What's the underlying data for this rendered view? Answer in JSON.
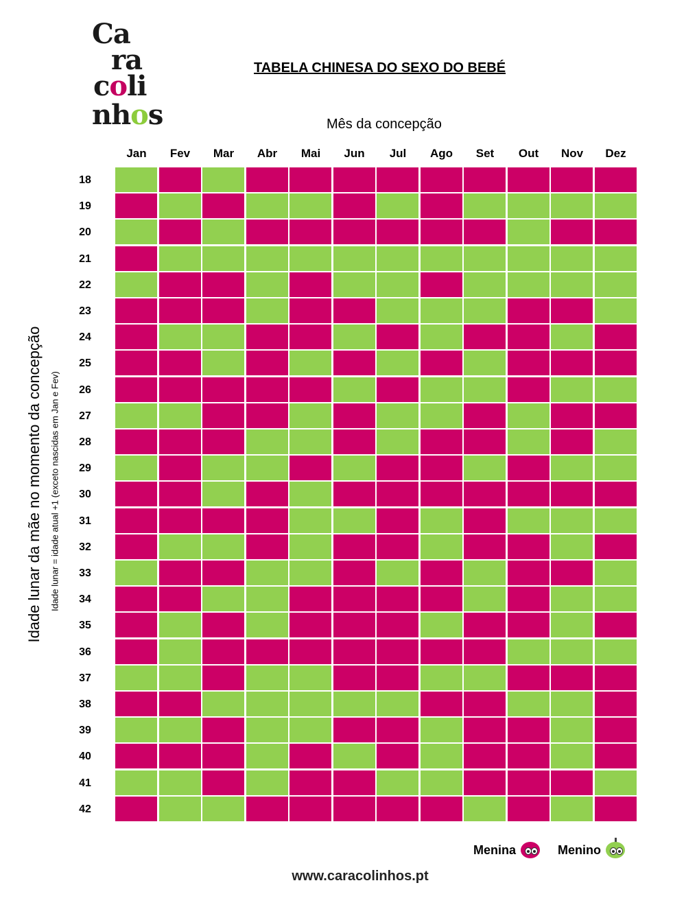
{
  "logo": {
    "line1": "Ca",
    "line2": "ra",
    "line3a": "c",
    "line3b": "o",
    "line3c": "li",
    "line4a": "nh",
    "line4b": "o",
    "line4c": "s"
  },
  "title": "TABELA CHINESA DO SEXO DO BEBÉ",
  "subtitle": "Mês da concepção",
  "axis_label": "Idade lunar da mãe no momento da concepção",
  "axis_note": "Idade lunar = idade atual +1 (exceto nascidas em Jan e Fev)",
  "months": [
    "Jan",
    "Fev",
    "Mar",
    "Abr",
    "Mai",
    "Jun",
    "Jul",
    "Ago",
    "Set",
    "Out",
    "Nov",
    "Dez"
  ],
  "ages": [
    "18",
    "19",
    "20",
    "21",
    "22",
    "23",
    "24",
    "25",
    "26",
    "27",
    "28",
    "29",
    "30",
    "31",
    "32",
    "33",
    "34",
    "35",
    "36",
    "37",
    "38",
    "39",
    "40",
    "41",
    "42"
  ],
  "colors": {
    "menina": "#cc0066",
    "menino": "#92d050"
  },
  "grid": [
    "GBGBBBBBBBBB",
    "BGBGGBGBGGGG",
    "GBGBBBBBBGBB",
    "BGGGGGGGGGGG",
    "GBBGBGGBGGGG",
    "BBBGBBGGGBBG",
    "BGGBBGBGBBGB",
    "BBGBGBGBGBBB",
    "BBBBBGBGGBGG",
    "GGBBGBGGBGBB",
    "BBBGGBGBBGBG",
    "GBGGBGBBGBGG",
    "BBGBGBBBBBBB",
    "BBBBGGBGBGGG",
    "BGGBGBBGBBGB",
    "GBBGGBGBGBBG",
    "BBGGBBBBGBGG",
    "BGBGBBBGBBGB",
    "BGBBBBBBBGGG",
    "GGBGGBBGGBBB",
    "BBGGGGGBBGGB",
    "GGBGGBBGBBGB",
    "BBBGBGBGBBGB",
    "GGBGBBGGBBBG",
    "BGGBBBBBGBGB"
  ],
  "legend": {
    "menina": "Menina",
    "menino": "Menino"
  },
  "url": "www.caracolinhos.pt"
}
